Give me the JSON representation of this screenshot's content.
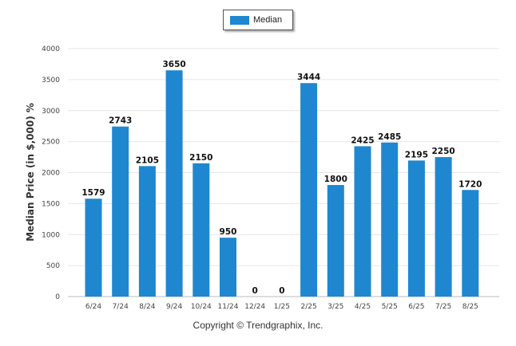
{
  "chart_data": {
    "type": "bar",
    "title": "",
    "ylabel": "Median Price (in $,000) %",
    "xlabel": "",
    "categories": [
      "6/24",
      "7/24",
      "8/24",
      "9/24",
      "10/24",
      "11/24",
      "12/24",
      "1/25",
      "2/25",
      "3/25",
      "4/25",
      "5/25",
      "6/25",
      "7/25",
      "8/25"
    ],
    "series": [
      {
        "name": "Median",
        "values": [
          1579,
          2743,
          2105,
          3650,
          2150,
          950,
          0,
          0,
          3444,
          1800,
          2425,
          2485,
          2195,
          2250,
          1720
        ]
      }
    ],
    "ylim": [
      0,
      4000
    ],
    "yticks": [
      0,
      500,
      1000,
      1500,
      2000,
      2500,
      3000,
      3500,
      4000
    ],
    "grid": true,
    "legend_position": "top-center",
    "bar_color": "#1f87d0"
  },
  "footer": {
    "copyright": "Copyright © Trendgraphix, Inc."
  }
}
